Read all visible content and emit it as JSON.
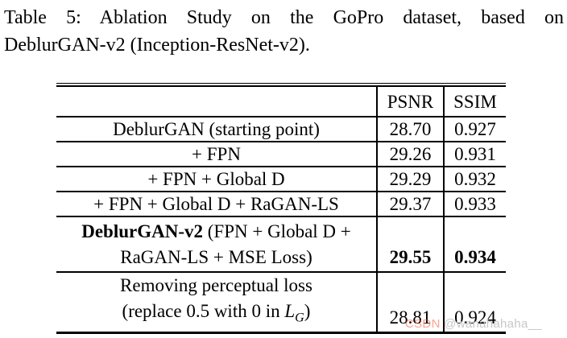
{
  "caption": {
    "line1": "Table 5: Ablation Study on the GoPro dataset, based on",
    "line2": "DeblurGAN-v2 (Inception-ResNet-v2)."
  },
  "table": {
    "headers": {
      "col1": "",
      "psnr": "PSNR",
      "ssim": "SSIM"
    },
    "rows": [
      {
        "label": "DeblurGAN (starting point)",
        "psnr": "28.70",
        "ssim": "0.927"
      },
      {
        "label": "+ FPN",
        "psnr": "29.26",
        "ssim": "0.931"
      },
      {
        "label": "+ FPN + Global D",
        "psnr": "29.29",
        "ssim": "0.932"
      },
      {
        "label": "+ FPN + Global D + RaGAN-LS",
        "psnr": "29.37",
        "ssim": "0.933"
      },
      {
        "label_bold": "DeblurGAN-v2",
        "label_rest": " (FPN + Global D +",
        "label_line2": "RaGAN-LS + MSE Loss)",
        "psnr": "29.55",
        "ssim": "0.934"
      },
      {
        "label_line1": "Removing perceptual loss",
        "label_line2_pre": "(replace 0.5 with 0 in ",
        "math_var": "L",
        "math_sub": "G",
        "label_line2_post": ")",
        "psnr": "28.81",
        "ssim": "0.924"
      }
    ]
  },
  "watermark": {
    "brand": "CSDN",
    "handle": "@wanahahaha__",
    "brand_color": "#fc5531",
    "handle_color": "#c7c7c7"
  }
}
